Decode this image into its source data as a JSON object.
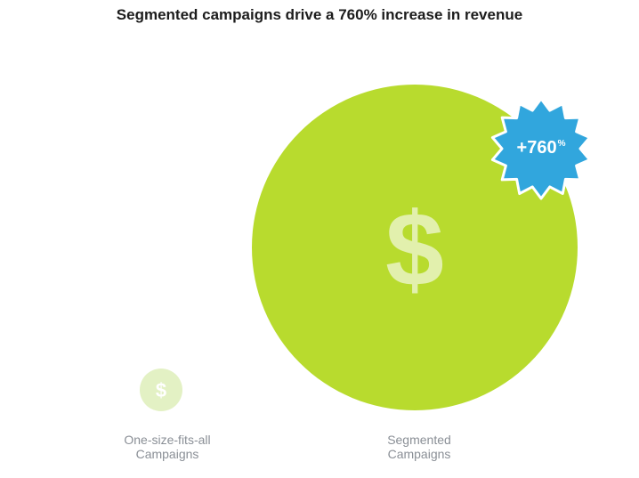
{
  "colors": {
    "small_bubble": "#e3f1c4",
    "large_bubble": "#b8db2e",
    "dollar_on_small": "#ffffff",
    "dollar_on_large": "#e2f0ad",
    "badge": "#31a6dd",
    "badge_border": "#ffffff"
  },
  "icons": {
    "bubble_icon": "dollar-sign-icon",
    "badge_icon": "starburst-badge-icon"
  },
  "chart_data": {
    "type": "bubble",
    "title": "Segmented campaigns drive a 760% increase in revenue",
    "categories": [
      "One-size-fits-all\nCampaigns",
      "Segmented\nCampaigns"
    ],
    "annotation": {
      "text": "+760",
      "suffix": "%",
      "attached_to": "Segmented\nCampaigns"
    },
    "grid": false,
    "legend": "none"
  }
}
